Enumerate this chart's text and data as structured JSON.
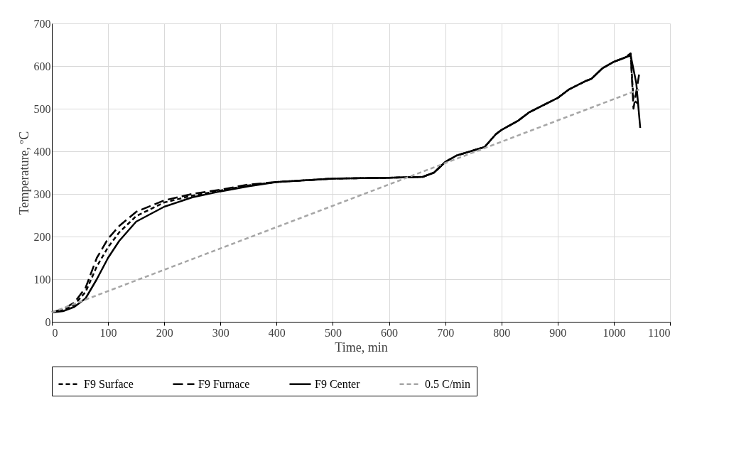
{
  "chart_data": {
    "type": "line",
    "xlabel": "Time, min",
    "ylabel": "Temperature, ºC",
    "xlim": [
      0,
      1100
    ],
    "xticks": [
      0,
      100,
      200,
      300,
      400,
      500,
      600,
      700,
      800,
      900,
      1000,
      1100
    ],
    "ylim": [
      0,
      700
    ],
    "yticks": [
      0,
      100,
      200,
      300,
      400,
      500,
      600,
      700
    ],
    "grid": true,
    "legend": "bottom",
    "marker": "none",
    "series": [
      {
        "name": "F9 Surface",
        "color": "#000000",
        "line_style": "dashed",
        "x": [
          0,
          20,
          40,
          60,
          80,
          100,
          120,
          150,
          200,
          250,
          300,
          350,
          400,
          500,
          600,
          660,
          680,
          700,
          720,
          750,
          770,
          790,
          800,
          830,
          850,
          880,
          900,
          920,
          950,
          960,
          980,
          1000,
          1020,
          1030,
          1035,
          1045
        ],
        "values": [
          22,
          28,
          40,
          70,
          130,
          175,
          210,
          248,
          280,
          296,
          308,
          320,
          328,
          336,
          338,
          340,
          350,
          375,
          390,
          402,
          410,
          440,
          450,
          472,
          492,
          512,
          525,
          545,
          565,
          570,
          595,
          610,
          620,
          628,
          520,
          510
        ]
      },
      {
        "name": "F9 Furnace",
        "color": "#000000",
        "line_style": "longdash",
        "x": [
          0,
          20,
          40,
          60,
          80,
          100,
          120,
          150,
          200,
          250,
          300,
          350,
          400,
          500,
          600,
          660,
          680,
          700,
          720,
          750,
          770,
          790,
          800,
          830,
          850,
          880,
          900,
          920,
          950,
          960,
          980,
          1000,
          1020,
          1030,
          1035,
          1045
        ],
        "values": [
          22,
          30,
          45,
          80,
          150,
          195,
          225,
          258,
          285,
          300,
          310,
          322,
          328,
          336,
          338,
          340,
          350,
          375,
          390,
          402,
          410,
          440,
          450,
          472,
          492,
          512,
          525,
          545,
          565,
          570,
          595,
          610,
          620,
          630,
          500,
          580
        ]
      },
      {
        "name": "F9 Center",
        "color": "#000000",
        "line_style": "solid",
        "x": [
          0,
          20,
          40,
          60,
          80,
          100,
          120,
          150,
          200,
          250,
          300,
          350,
          400,
          500,
          600,
          660,
          680,
          700,
          720,
          750,
          770,
          790,
          800,
          830,
          850,
          880,
          900,
          920,
          950,
          960,
          980,
          1000,
          1020,
          1030,
          1040,
          1047
        ],
        "values": [
          22,
          25,
          35,
          55,
          100,
          150,
          190,
          235,
          270,
          292,
          306,
          318,
          328,
          336,
          338,
          340,
          350,
          375,
          390,
          402,
          410,
          440,
          450,
          472,
          492,
          512,
          525,
          545,
          565,
          570,
          595,
          610,
          620,
          625,
          560,
          455
        ]
      },
      {
        "name": "0.5 C/min",
        "color": "#a6a6a6",
        "line_style": "dashed",
        "x": [
          0,
          1045
        ],
        "values": [
          22,
          545
        ]
      }
    ]
  }
}
